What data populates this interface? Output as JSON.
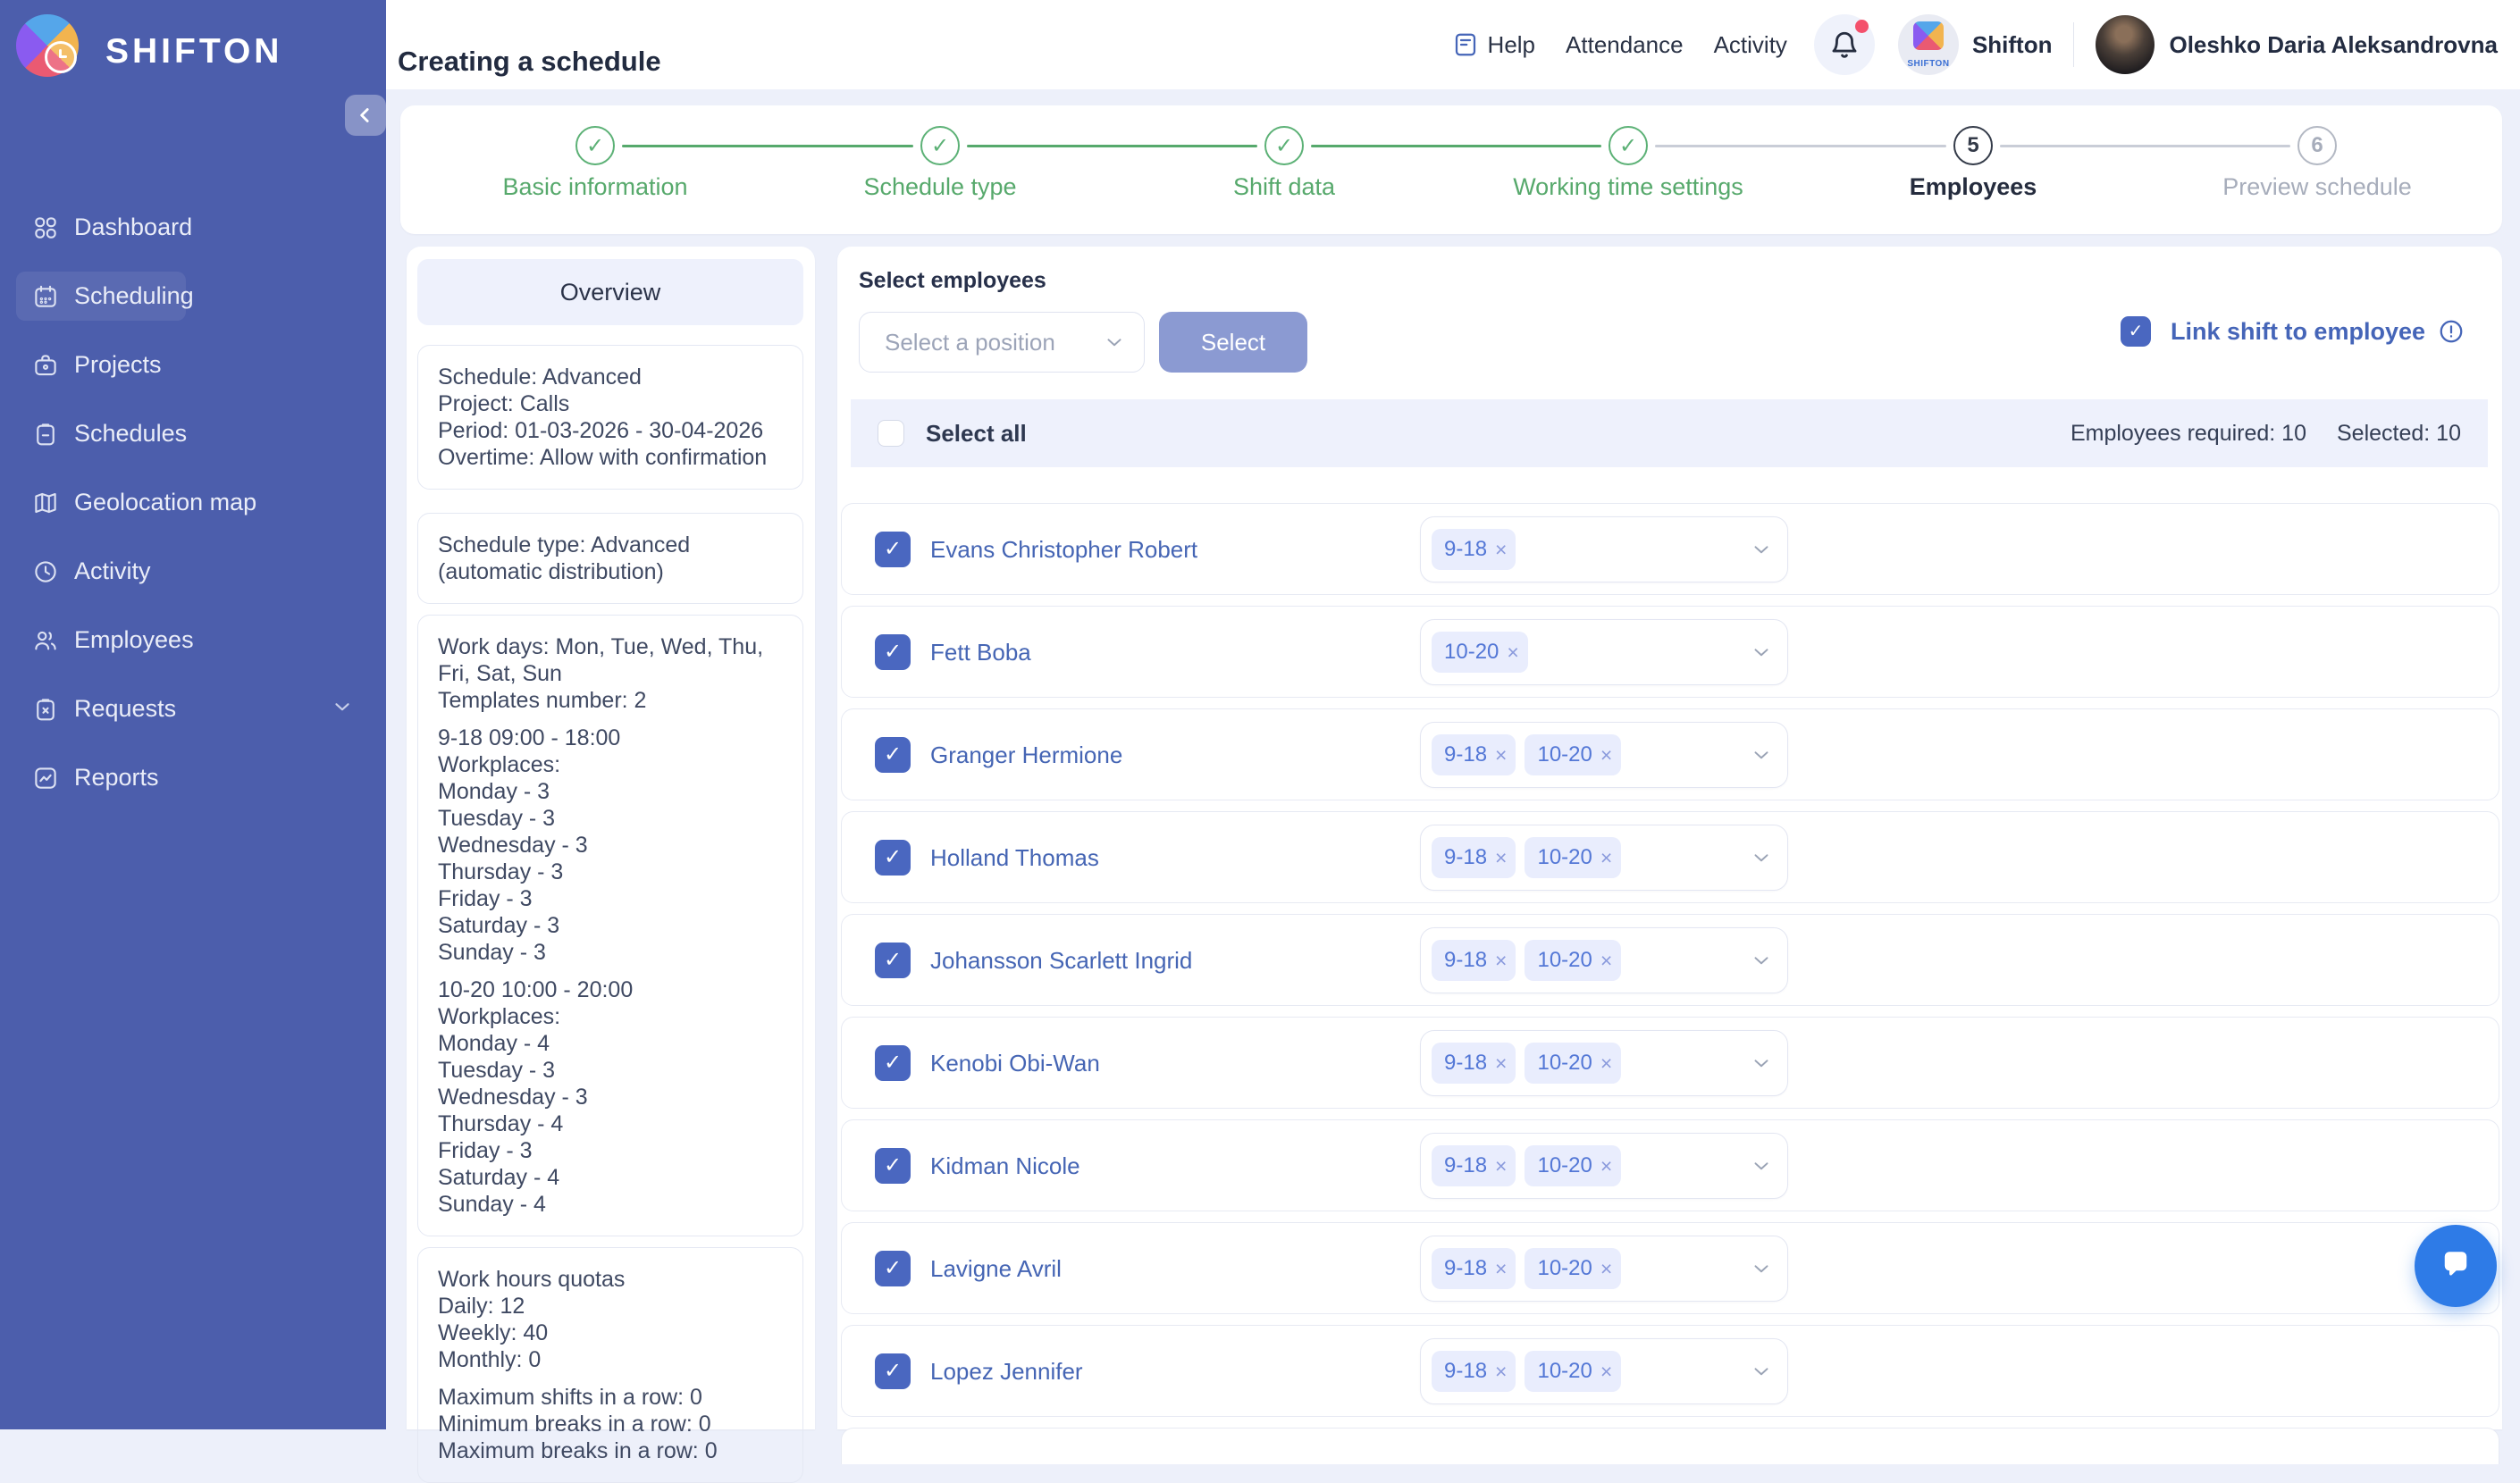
{
  "window": {
    "title": "Creating a schedule"
  },
  "colors": {
    "sidebar_bg": "#4C5EAC",
    "accent_blue": "#4565B8",
    "checkbox_blue": "#4A67C0",
    "step_done_green": "#57A96C",
    "tag_bg": "#E9EDFD",
    "selectall_bar_bg": "#EEF1FC",
    "page_bg": "#EDF0FA",
    "muted_button": "#8B9AD2",
    "notification_red": "#F4516C",
    "chat_fab_blue": "#2E7BE7"
  },
  "sidebar": {
    "brand": "SHIFTON",
    "items": [
      {
        "label": "Dashboard"
      },
      {
        "label": "Scheduling"
      },
      {
        "label": "Projects"
      },
      {
        "label": "Schedules"
      },
      {
        "label": "Geolocation map"
      },
      {
        "label": "Activity"
      },
      {
        "label": "Employees"
      },
      {
        "label": "Requests"
      },
      {
        "label": "Reports"
      }
    ]
  },
  "topbar": {
    "help": "Help",
    "attendance": "Attendance",
    "activity": "Activity",
    "workspace": "Shifton",
    "user": "Oleshko Daria Aleksandrovna"
  },
  "stepper": {
    "check_icon": "✓",
    "steps": [
      {
        "label": "Basic information",
        "state": "done"
      },
      {
        "label": "Schedule type",
        "state": "done"
      },
      {
        "label": "Shift data",
        "state": "done"
      },
      {
        "label": "Working time settings",
        "state": "done"
      },
      {
        "label": "Employees",
        "state": "current",
        "number": "5"
      },
      {
        "label": "Preview schedule",
        "state": "upcoming",
        "number": "6"
      }
    ]
  },
  "overview": {
    "title": "Overview",
    "basic": [
      "Schedule: Advanced",
      "Project: Calls",
      "Period: 01-03-2026 - 30-04-2026",
      "Overtime: Allow with confirmation"
    ],
    "type": [
      "Schedule type: Advanced (automatic distribution)"
    ],
    "workdays_header": [
      "Work days: Mon, Tue, Wed, Thu, Fri, Sat, Sun",
      "Templates number: 2"
    ],
    "template_1": [
      "9-18 09:00 - 18:00",
      "Workplaces:",
      "Monday - 3",
      "Tuesday - 3",
      "Wednesday - 3",
      "Thursday - 3",
      "Friday - 3",
      "Saturday - 3",
      "Sunday - 3"
    ],
    "template_2": [
      "10-20 10:00 - 20:00",
      "Workplaces:",
      "Monday - 4",
      "Tuesday - 3",
      "Wednesday - 3",
      "Thursday - 4",
      "Friday - 3",
      "Saturday - 4",
      "Sunday - 4"
    ],
    "quotas": [
      "Work hours quotas",
      "Daily: 12",
      "Weekly: 40",
      "Monthly: 0"
    ],
    "limits": [
      "Maximum shifts in a row: 0",
      "Minimum breaks in a row: 0",
      "Maximum breaks in a row: 0"
    ]
  },
  "employees_section": {
    "heading": "Select employees",
    "position_placeholder": "Select a position",
    "select_button": "Select",
    "link_shift_label": "Link shift to employee",
    "select_all_label": "Select all",
    "required_label": "Employees required: 10",
    "selected_label": "Selected: 10",
    "tag_remove_icon": "×"
  },
  "employees": [
    {
      "name": "Evans Christopher Robert",
      "tags": [
        "9-18"
      ]
    },
    {
      "name": "Fett Boba",
      "tags": [
        "10-20"
      ]
    },
    {
      "name": "Granger Hermione",
      "tags": [
        "9-18",
        "10-20"
      ]
    },
    {
      "name": "Holland Thomas",
      "tags": [
        "9-18",
        "10-20"
      ]
    },
    {
      "name": "Johansson Scarlett Ingrid",
      "tags": [
        "9-18",
        "10-20"
      ]
    },
    {
      "name": "Kenobi Obi-Wan",
      "tags": [
        "9-18",
        "10-20"
      ]
    },
    {
      "name": "Kidman Nicole",
      "tags": [
        "9-18",
        "10-20"
      ]
    },
    {
      "name": "Lavigne Avril",
      "tags": [
        "9-18",
        "10-20"
      ]
    },
    {
      "name": "Lopez Jennifer",
      "tags": [
        "9-18",
        "10-20"
      ]
    }
  ]
}
